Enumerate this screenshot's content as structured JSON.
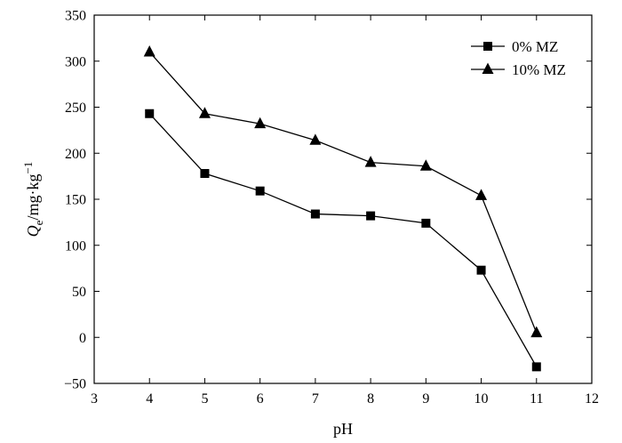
{
  "chart_data": {
    "type": "line",
    "title": "",
    "xlabel": "pH",
    "ylabel": {
      "main": "Q",
      "subscript": "e",
      "unit": "/mg·kg",
      "superscript": "−1"
    },
    "xlim": [
      3,
      12
    ],
    "ylim": [
      -50,
      350
    ],
    "xticks": [
      3,
      4,
      5,
      6,
      7,
      8,
      9,
      10,
      11,
      12
    ],
    "yticks": [
      -50,
      0,
      50,
      100,
      150,
      200,
      250,
      300,
      350
    ],
    "x": [
      4,
      5,
      6,
      7,
      8,
      9,
      10,
      11
    ],
    "series": [
      {
        "name": "0% MZ",
        "marker": "square",
        "values": [
          243,
          178,
          159,
          134,
          132,
          124,
          73,
          -32
        ]
      },
      {
        "name": "10% MZ",
        "marker": "triangle",
        "values": [
          310,
          243,
          232,
          214,
          190,
          186,
          154,
          5
        ]
      }
    ],
    "legend_position": "top-right",
    "grid": false
  }
}
